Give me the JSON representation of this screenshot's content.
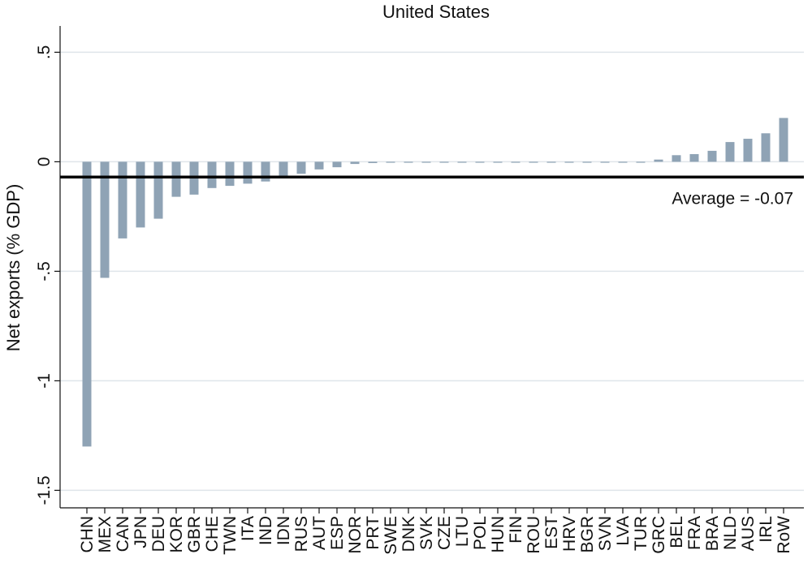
{
  "chart_data": {
    "type": "bar",
    "title": "United States",
    "ylabel": "Net exports (% GDP)",
    "xlabel": "",
    "ylim": [
      -1.58,
      0.62
    ],
    "yticks": [
      0.5,
      0,
      -0.5,
      -1,
      -1.5
    ],
    "ytick_labels": [
      ".5",
      "0",
      "-.5",
      "-1",
      "-1.5"
    ],
    "grid": true,
    "bar_color": "#8fa3b5",
    "categories": [
      "CHN",
      "MEX",
      "CAN",
      "JPN",
      "DEU",
      "KOR",
      "GBR",
      "CHE",
      "TWN",
      "ITA",
      "IND",
      "IDN",
      "RUS",
      "AUT",
      "ESP",
      "NOR",
      "PRT",
      "SWE",
      "DNK",
      "SVK",
      "CZE",
      "LTU",
      "POL",
      "HUN",
      "FIN",
      "ROU",
      "EST",
      "HRV",
      "BGR",
      "SVN",
      "LVA",
      "TUR",
      "GRC",
      "BEL",
      "FRA",
      "BRA",
      "NLD",
      "AUS",
      "IRL",
      "RoW"
    ],
    "values": [
      -1.3,
      -0.53,
      -0.35,
      -0.3,
      -0.26,
      -0.16,
      -0.15,
      -0.12,
      -0.11,
      -0.1,
      -0.09,
      -0.07,
      -0.055,
      -0.035,
      -0.025,
      -0.01,
      -0.006,
      -0.004,
      -0.004,
      -0.003,
      -0.003,
      -0.002,
      -0.002,
      -0.002,
      -0.002,
      -0.002,
      -0.002,
      -0.002,
      -0.002,
      -0.002,
      -0.002,
      -0.002,
      0.01,
      0.03,
      0.035,
      0.05,
      0.09,
      0.105,
      0.13,
      0.2
    ],
    "average": -0.07,
    "average_label": "Average = -0.07"
  }
}
